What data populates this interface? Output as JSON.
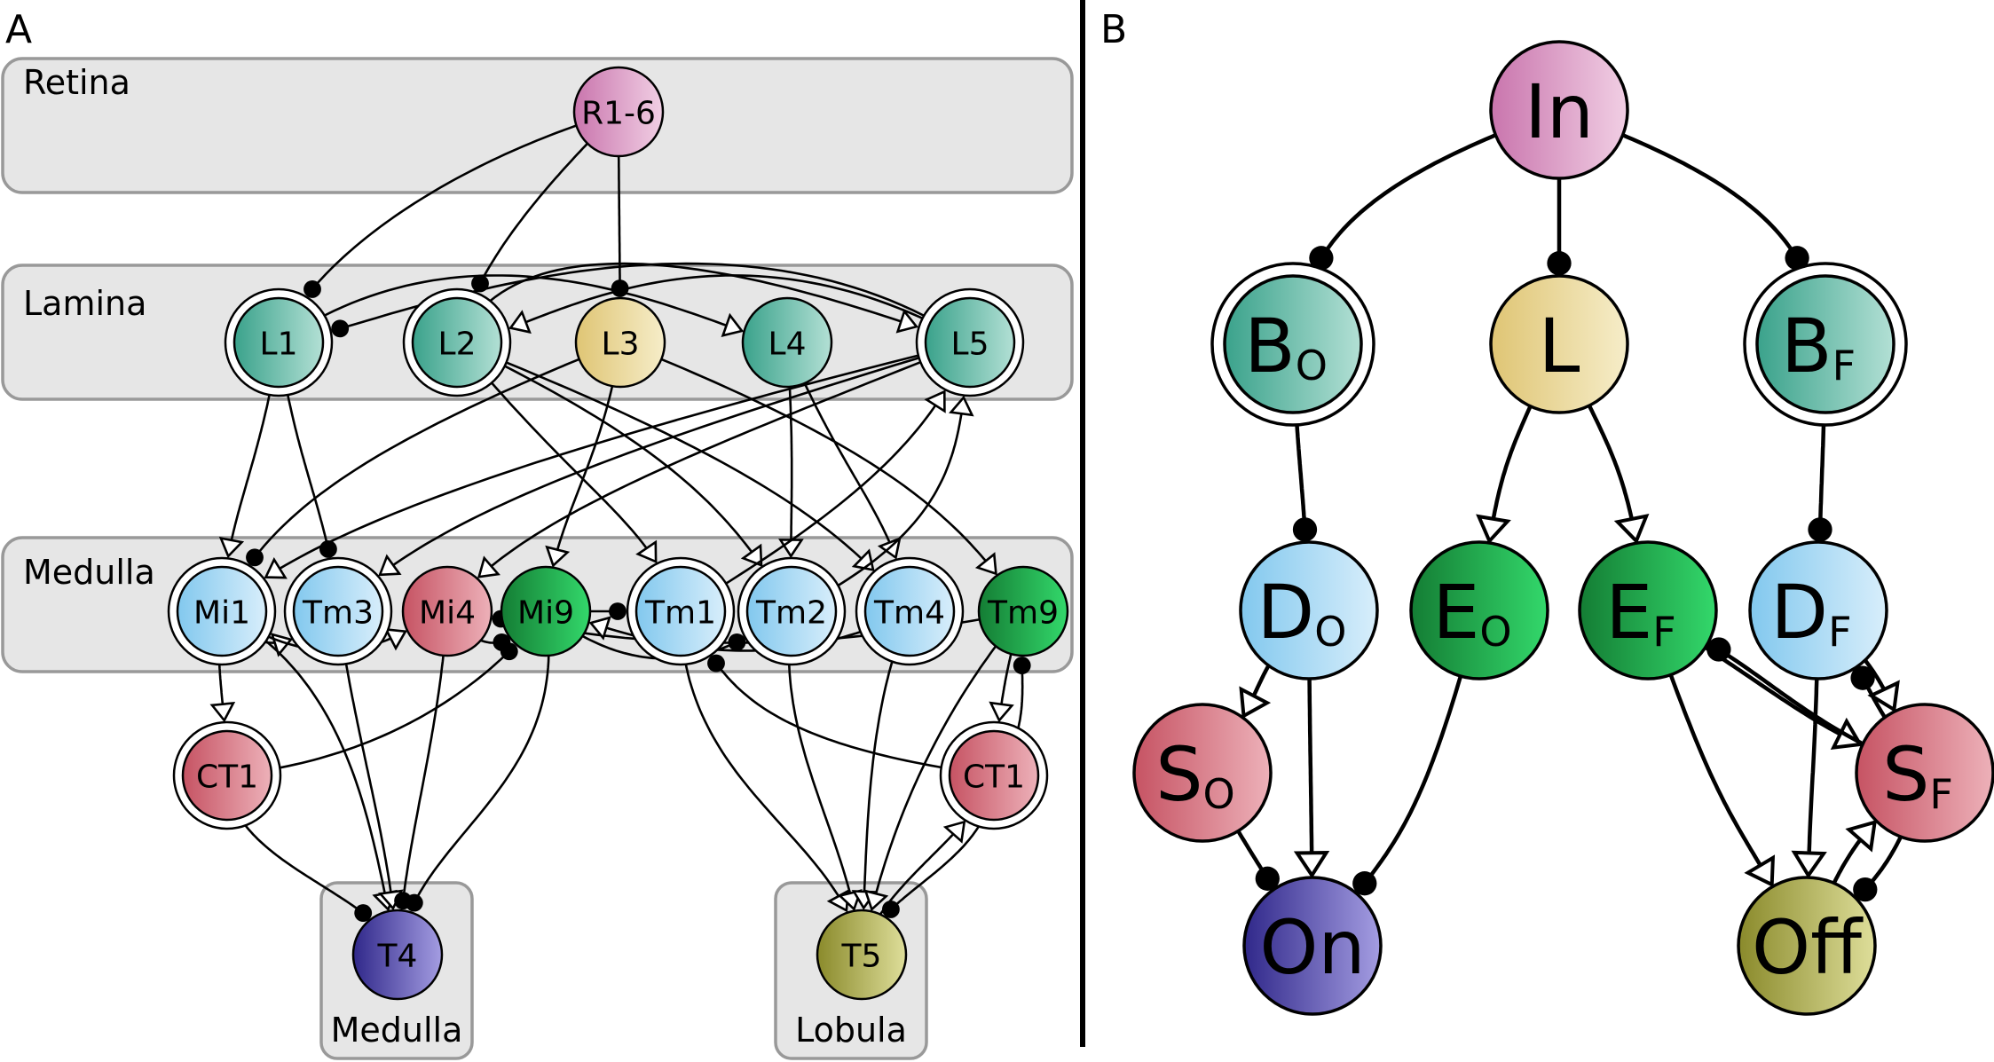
{
  "panels": {
    "a": "A",
    "b": "B"
  },
  "colors": {
    "photoreceptor": [
      "#c975ad",
      "#f1cfe4"
    ],
    "lamina_teal": [
      "#3aa28b",
      "#b3e0d5"
    ],
    "lamina_yellow": [
      "#dfc574",
      "#f6edc9"
    ],
    "medulla_blue": [
      "#82c8ee",
      "#d8eefb"
    ],
    "red": [
      "#c65363",
      "#edb1b9"
    ],
    "green": [
      "#147d34",
      "#33d86b"
    ],
    "purple": [
      "#30288a",
      "#a49de2"
    ],
    "olive": [
      "#8a8a2b",
      "#dede9a"
    ]
  },
  "panel_a": {
    "regions": [
      {
        "id": "retina",
        "label": "Retina"
      },
      {
        "id": "lamina",
        "label": "Lamina"
      },
      {
        "id": "medulla",
        "label": "Medulla"
      },
      {
        "id": "t4-medulla",
        "label": "Medulla"
      },
      {
        "id": "t5-lobula",
        "label": "Lobula"
      }
    ],
    "nodes": [
      {
        "id": "r16",
        "label": "R1-6"
      },
      {
        "id": "l1",
        "label": "L1"
      },
      {
        "id": "l2",
        "label": "L2"
      },
      {
        "id": "l3",
        "label": "L3"
      },
      {
        "id": "l4",
        "label": "L4"
      },
      {
        "id": "l5",
        "label": "L5"
      },
      {
        "id": "mi1",
        "label": "Mi1"
      },
      {
        "id": "tm3",
        "label": "Tm3"
      },
      {
        "id": "mi4",
        "label": "Mi4"
      },
      {
        "id": "mi9",
        "label": "Mi9"
      },
      {
        "id": "tm1",
        "label": "Tm1"
      },
      {
        "id": "tm2",
        "label": "Tm2"
      },
      {
        "id": "tm4",
        "label": "Tm4"
      },
      {
        "id": "tm9",
        "label": "Tm9"
      },
      {
        "id": "ct1a",
        "label": "CT1"
      },
      {
        "id": "ct1b",
        "label": "CT1"
      },
      {
        "id": "t4",
        "label": "T4"
      },
      {
        "id": "t5",
        "label": "T5"
      }
    ]
  },
  "panel_b": {
    "nodes": [
      {
        "id": "in",
        "label": "In",
        "sub": ""
      },
      {
        "id": "bo",
        "label": "B",
        "sub": "O"
      },
      {
        "id": "l",
        "label": "L",
        "sub": ""
      },
      {
        "id": "bf",
        "label": "B",
        "sub": "F"
      },
      {
        "id": "do",
        "label": "D",
        "sub": "O"
      },
      {
        "id": "eo",
        "label": "E",
        "sub": "O"
      },
      {
        "id": "ef",
        "label": "E",
        "sub": "F"
      },
      {
        "id": "df",
        "label": "D",
        "sub": "F"
      },
      {
        "id": "so",
        "label": "S",
        "sub": "O"
      },
      {
        "id": "sf",
        "label": "S",
        "sub": "F"
      },
      {
        "id": "on",
        "label": "On",
        "sub": ""
      },
      {
        "id": "off",
        "label": "Off",
        "sub": ""
      }
    ]
  }
}
